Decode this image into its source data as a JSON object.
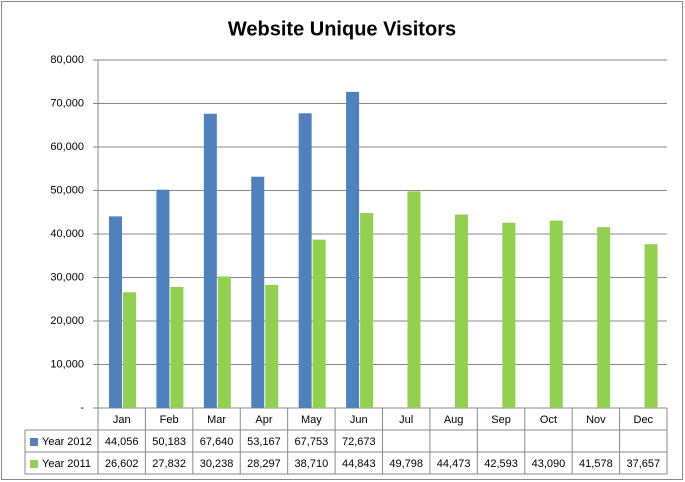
{
  "chart_data": {
    "type": "bar",
    "title": "Website Unique Visitors",
    "categories": [
      "Jan",
      "Feb",
      "Mar",
      "Apr",
      "May",
      "Jun",
      "Jul",
      "Aug",
      "Sep",
      "Oct",
      "Nov",
      "Dec"
    ],
    "series": [
      {
        "name": "Year 2012",
        "color": "#4f81bd",
        "values": [
          44056,
          50183,
          67640,
          53167,
          67753,
          72673,
          null,
          null,
          null,
          null,
          null,
          null
        ],
        "value_labels": [
          "44,056",
          "50,183",
          "67,640",
          "53,167",
          "67,753",
          "72,673",
          null,
          null,
          null,
          null,
          null,
          null
        ]
      },
      {
        "name": "Year 2011",
        "color": "#92d050",
        "values": [
          26602,
          27832,
          30238,
          28297,
          38710,
          44843,
          49798,
          44473,
          42593,
          43090,
          41578,
          37657
        ],
        "value_labels": [
          "26,602",
          "27,832",
          "30,238",
          "28,297",
          "38,710",
          "44,843",
          "49,798",
          "44,473",
          "42,593",
          "43,090",
          "41,578",
          "37,657"
        ]
      }
    ],
    "ylim": [
      0,
      80000
    ],
    "yticks": [
      {
        "value": 0,
        "label": "-"
      },
      {
        "value": 10000,
        "label": "10,000"
      },
      {
        "value": 20000,
        "label": "20,000"
      },
      {
        "value": 30000,
        "label": "30,000"
      },
      {
        "value": 40000,
        "label": "40,000"
      },
      {
        "value": 50000,
        "label": "50,000"
      },
      {
        "value": 60000,
        "label": "60,000"
      },
      {
        "value": 70000,
        "label": "70,000"
      },
      {
        "value": 80000,
        "label": "80,000"
      }
    ],
    "grid": true
  }
}
